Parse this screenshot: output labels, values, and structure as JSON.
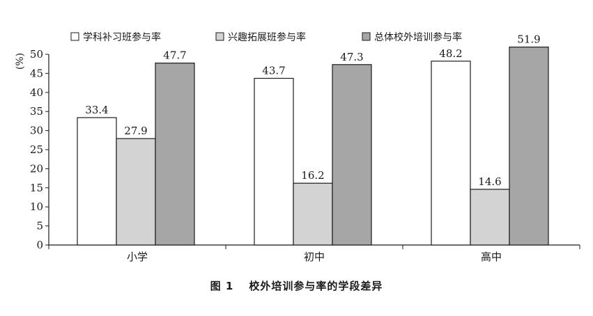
{
  "figure": {
    "number": "图 1",
    "title": "校外培训参与率的学段差异"
  },
  "chart_data": {
    "type": "bar",
    "categories": [
      "小学",
      "初中",
      "高中"
    ],
    "series": [
      {
        "name": "学科补习班参与率",
        "values": [
          33.4,
          43.7,
          48.2
        ],
        "color": "#ffffff"
      },
      {
        "name": "兴趣拓展班参与率",
        "values": [
          27.9,
          16.2,
          14.6
        ],
        "color": "#d3d3d3"
      },
      {
        "name": "总体校外培训参与率",
        "values": [
          47.7,
          47.3,
          51.9
        ],
        "color": "#a6a6a6"
      }
    ],
    "ylabel": "%",
    "ylim": [
      0,
      50
    ],
    "yticks": [
      0,
      5,
      10,
      15,
      20,
      25,
      30,
      35,
      40,
      45,
      50
    ],
    "legend_position": "top",
    "grid": false,
    "data_labels": true
  }
}
